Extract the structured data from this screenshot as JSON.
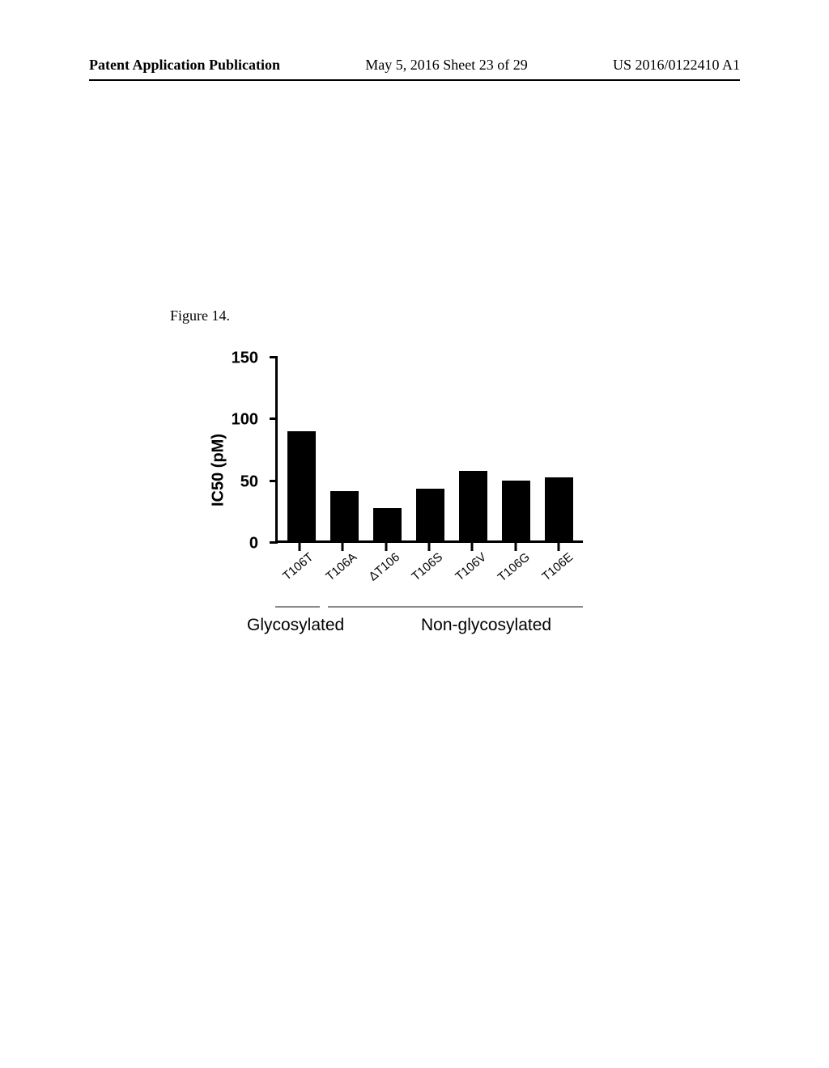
{
  "header": {
    "left": "Patent Application Publication",
    "center": "May 5, 2016  Sheet 23 of 29",
    "right": "US 2016/0122410 A1"
  },
  "figure": {
    "caption": "Figure 14.",
    "chart": {
      "type": "bar",
      "y_axis_label": "IC50 (pM)",
      "y_ticks": [
        0,
        50,
        100,
        150
      ],
      "ylim": [
        0,
        150
      ],
      "categories": [
        "T106T",
        "T106A",
        "ΔT106",
        "T106S",
        "T106V",
        "T106G",
        "T106E"
      ],
      "values": [
        88,
        40,
        26,
        42,
        56,
        48,
        51
      ],
      "bar_color": "#000000",
      "background_color": "#ffffff",
      "axis_color": "#000000",
      "axis_width": 3,
      "label_fontsize": 20,
      "tick_fontsize": 20,
      "x_label_fontsize": 15,
      "x_label_rotation": -40,
      "groups": {
        "left": {
          "label": "Glycosylated",
          "indices": [
            0
          ]
        },
        "right": {
          "label": "Non-glycosylated",
          "indices": [
            1,
            2,
            3,
            4,
            5,
            6
          ]
        },
        "line_color": "#888888",
        "fontsize": 21
      }
    }
  }
}
